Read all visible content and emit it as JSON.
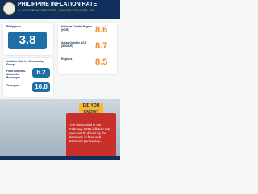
{
  "header": {
    "title": "PHILIPPINE INFLATION RATE",
    "subtitle": "ALL INCOME HOUSEHOLDS, JANUARY 2025 (2018=100)"
  },
  "national": {
    "label": "Philippines",
    "value": "3.8"
  },
  "regions": [
    {
      "label": "National Capital Region (NCR)",
      "value": "8.6"
    },
    {
      "label": "Areas Outside NCR (AONCR)",
      "value": "8.7"
    },
    {
      "label": "Regions",
      "value": "8.5"
    }
  ],
  "highlights": {
    "label": "Inflation Rate by Commodity Group",
    "items": [
      {
        "label": "Food and Non-Alcoholic Beverages",
        "value": "6.2"
      },
      {
        "label": "Transport",
        "value": "10.8"
      }
    ]
  },
  "callout": {
    "heading": "DID YOU KNOW?",
    "text": "The downtrend in the February 2025 inflation rate was mainly driven by the decrease in food and transport particularly..."
  }
}
